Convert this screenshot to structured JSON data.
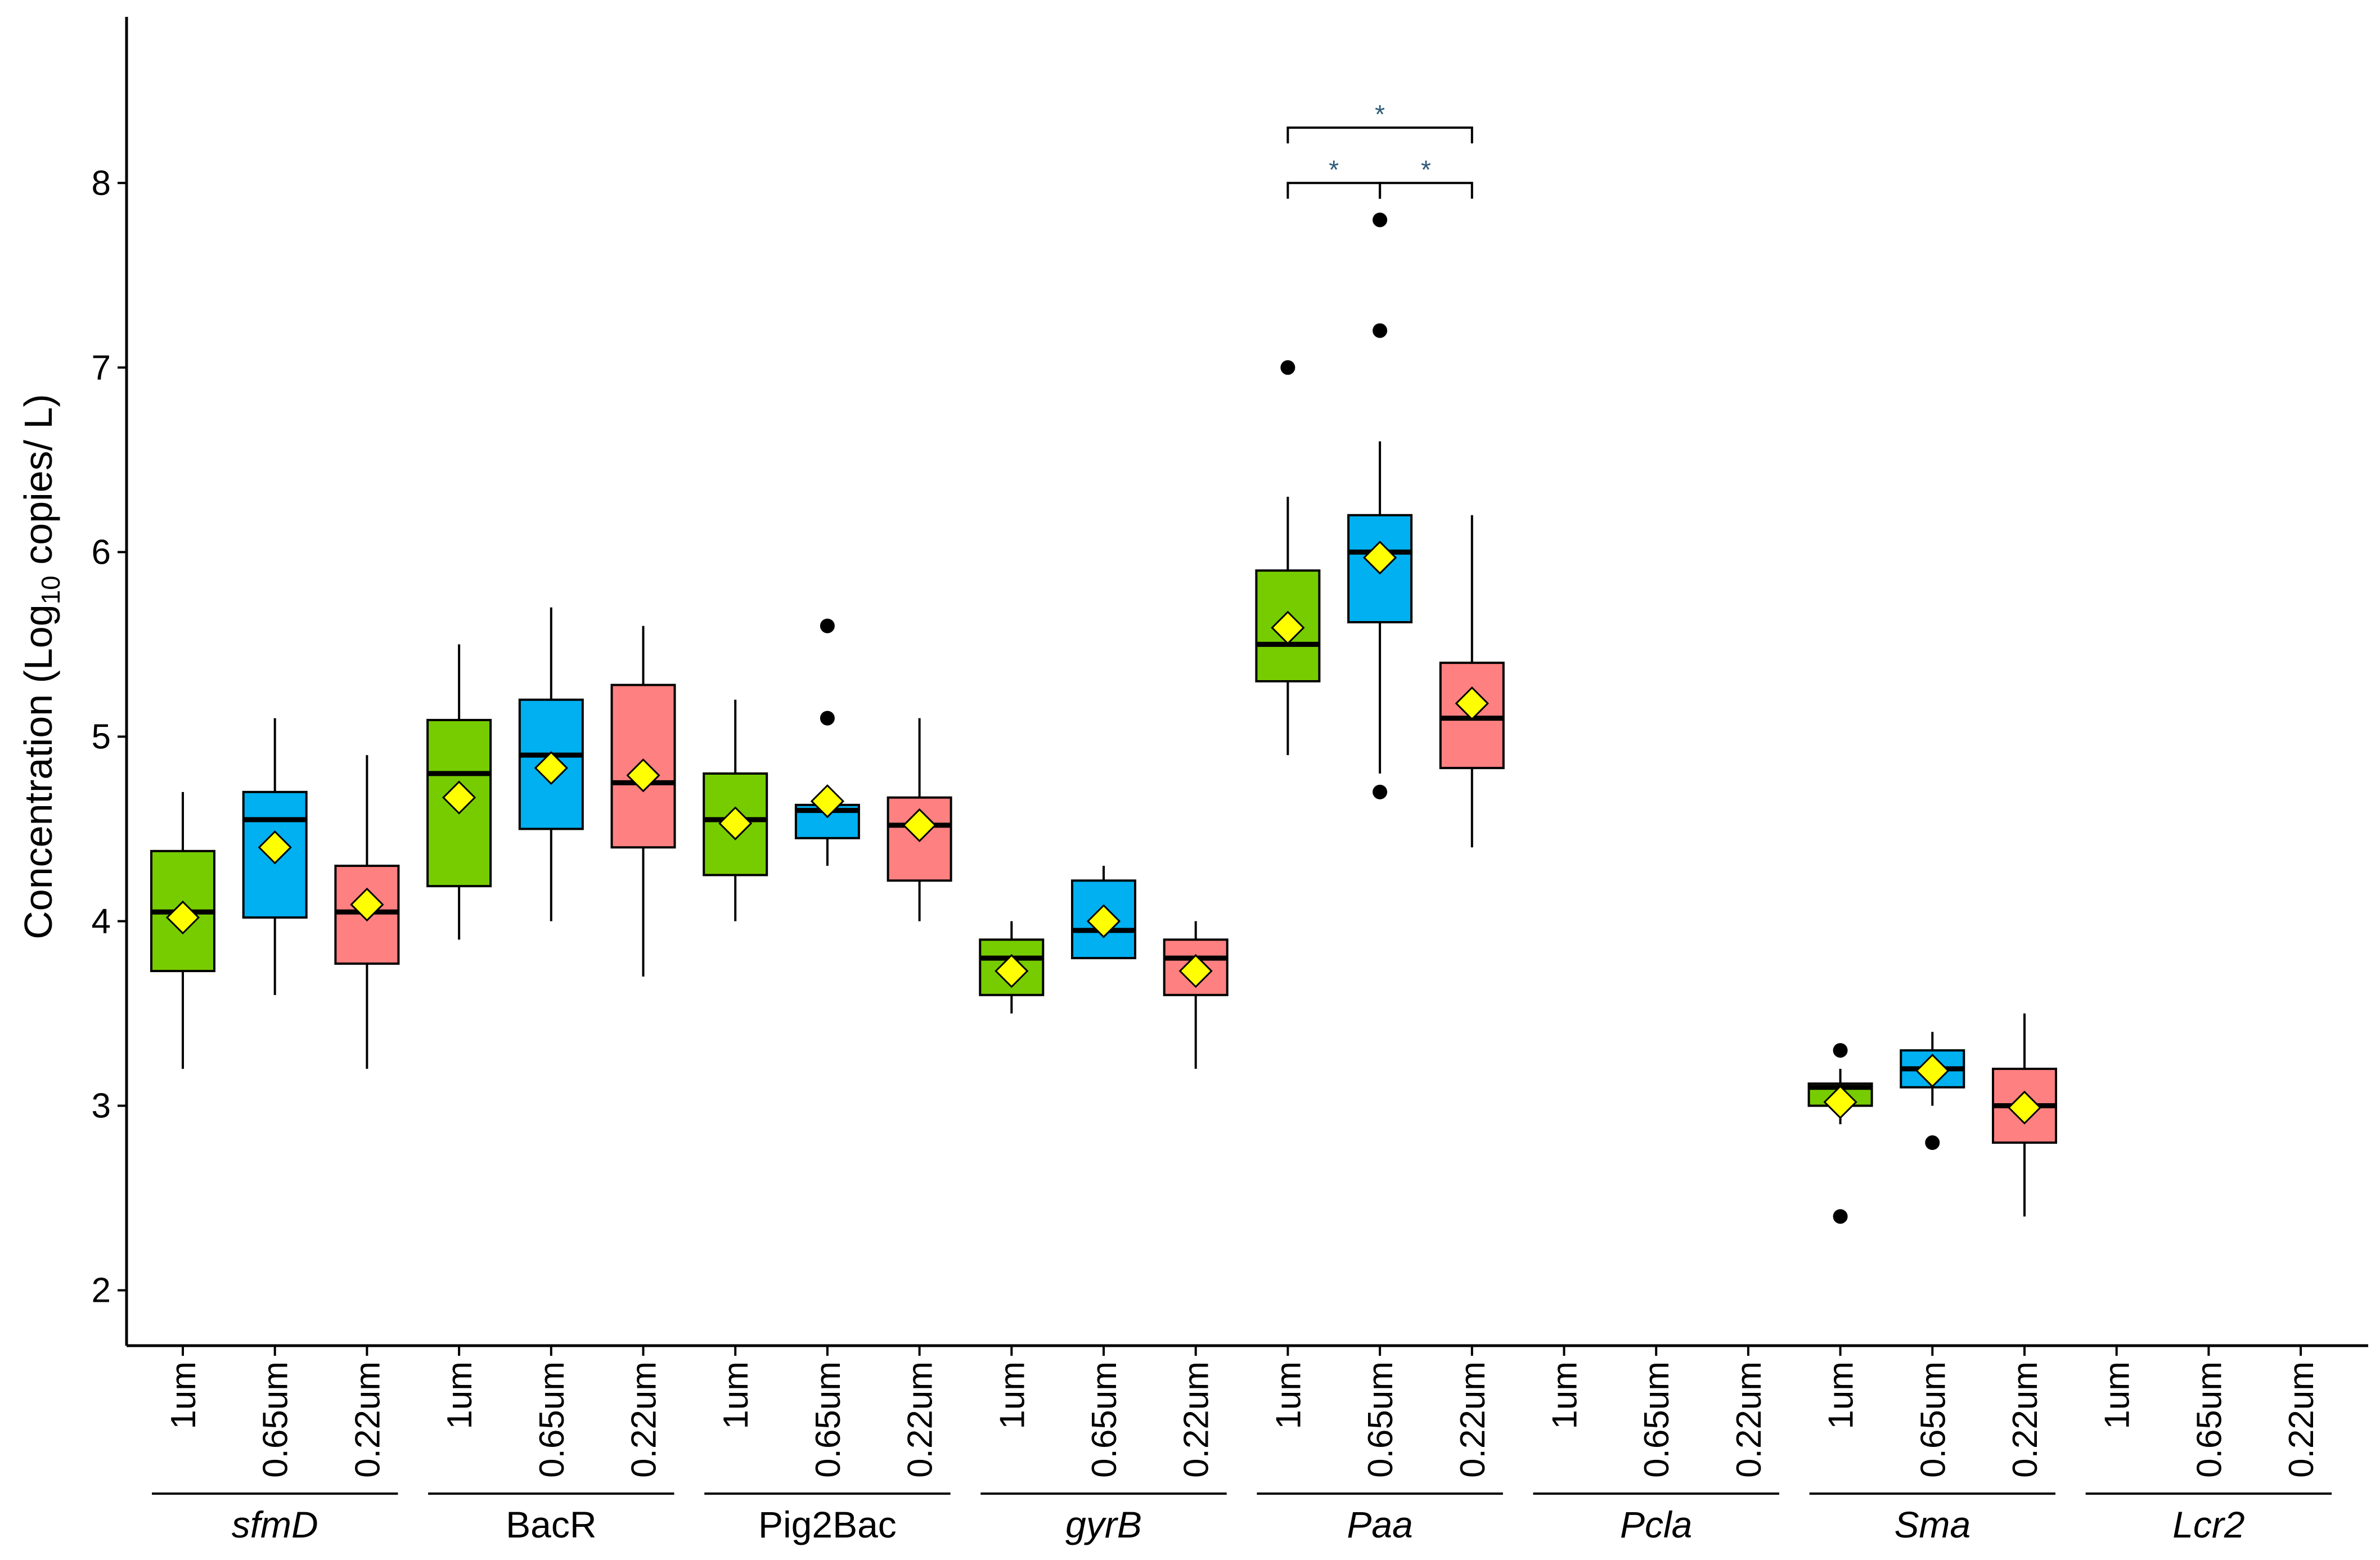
{
  "chart_data": {
    "type": "box",
    "ylabel": {
      "pre": "Concentration (Log",
      "sub": "10",
      "post": " copies/ L)"
    },
    "ylim": [
      1.7,
      8.9
    ],
    "yticks": [
      2,
      3,
      4,
      5,
      6,
      7,
      8
    ],
    "sizes": [
      "1um",
      "0.65um",
      "0.22um"
    ],
    "colors": {
      "1um": "#77cc00",
      "0.65um": "#00b0f0",
      "0.22um": "#ff8080"
    },
    "mean_marker_color": "#ffff00",
    "groups": [
      {
        "gene": "sfmD",
        "italic": true,
        "boxes": [
          {
            "size": "1um",
            "min": 3.2,
            "q1": 3.73,
            "median": 4.05,
            "q3": 4.38,
            "max": 4.7,
            "mean": 4.02,
            "outliers": []
          },
          {
            "size": "0.65um",
            "min": 3.6,
            "q1": 4.02,
            "median": 4.55,
            "q3": 4.7,
            "max": 5.1,
            "mean": 4.4,
            "outliers": []
          },
          {
            "size": "0.22um",
            "min": 3.2,
            "q1": 3.77,
            "median": 4.05,
            "q3": 4.3,
            "max": 4.9,
            "mean": 4.09,
            "outliers": []
          }
        ]
      },
      {
        "gene": "BacR",
        "italic": false,
        "boxes": [
          {
            "size": "1um",
            "min": 3.9,
            "q1": 4.19,
            "median": 4.8,
            "q3": 5.09,
            "max": 5.5,
            "mean": 4.67,
            "outliers": []
          },
          {
            "size": "0.65um",
            "min": 4.0,
            "q1": 4.5,
            "median": 4.9,
            "q3": 5.2,
            "max": 5.7,
            "mean": 4.83,
            "outliers": []
          },
          {
            "size": "0.22um",
            "min": 3.7,
            "q1": 4.4,
            "median": 4.75,
            "q3": 5.28,
            "max": 5.6,
            "mean": 4.79,
            "outliers": []
          }
        ]
      },
      {
        "gene": "Pig2Bac",
        "italic": false,
        "boxes": [
          {
            "size": "1um",
            "min": 4.0,
            "q1": 4.25,
            "median": 4.55,
            "q3": 4.8,
            "max": 5.2,
            "mean": 4.53,
            "outliers": []
          },
          {
            "size": "0.65um",
            "min": 4.3,
            "q1": 4.45,
            "median": 4.6,
            "q3": 4.63,
            "max": 4.63,
            "mean": 4.65,
            "outliers": [
              5.6,
              5.1
            ]
          },
          {
            "size": "0.22um",
            "min": 4.0,
            "q1": 4.22,
            "median": 4.52,
            "q3": 4.67,
            "max": 5.1,
            "mean": 4.52,
            "outliers": []
          }
        ]
      },
      {
        "gene": "gyrB",
        "italic": true,
        "boxes": [
          {
            "size": "1um",
            "min": 3.5,
            "q1": 3.6,
            "median": 3.8,
            "q3": 3.9,
            "max": 4.0,
            "mean": 3.73,
            "outliers": []
          },
          {
            "size": "0.65um",
            "min": 3.8,
            "q1": 3.8,
            "median": 3.95,
            "q3": 4.22,
            "max": 4.3,
            "mean": 4.0,
            "outliers": []
          },
          {
            "size": "0.22um",
            "min": 3.2,
            "q1": 3.6,
            "median": 3.8,
            "q3": 3.9,
            "max": 4.0,
            "mean": 3.73,
            "outliers": []
          }
        ]
      },
      {
        "gene": "Paa",
        "italic": true,
        "boxes": [
          {
            "size": "1um",
            "min": 4.9,
            "q1": 5.3,
            "median": 5.5,
            "q3": 5.9,
            "max": 6.3,
            "mean": 5.59,
            "outliers": [
              7.0
            ]
          },
          {
            "size": "0.65um",
            "min": 4.8,
            "q1": 5.62,
            "median": 6.0,
            "q3": 6.2,
            "max": 6.6,
            "mean": 5.97,
            "outliers": [
              7.8,
              7.2,
              4.7
            ]
          },
          {
            "size": "0.22um",
            "min": 4.4,
            "q1": 4.83,
            "median": 5.1,
            "q3": 5.4,
            "max": 6.2,
            "mean": 5.18,
            "outliers": []
          }
        ]
      },
      {
        "gene": "Pcla",
        "italic": true,
        "boxes": []
      },
      {
        "gene": "Sma",
        "italic": true,
        "boxes": [
          {
            "size": "1um",
            "min": 2.9,
            "q1": 3.0,
            "median": 3.1,
            "q3": 3.12,
            "max": 3.2,
            "mean": 3.02,
            "outliers": [
              3.3,
              2.4
            ]
          },
          {
            "size": "0.65um",
            "min": 3.0,
            "q1": 3.1,
            "median": 3.2,
            "q3": 3.3,
            "max": 3.4,
            "mean": 3.19,
            "outliers": [
              2.8
            ]
          },
          {
            "size": "0.22um",
            "min": 2.4,
            "q1": 2.8,
            "median": 3.0,
            "q3": 3.2,
            "max": 3.5,
            "mean": 2.99,
            "outliers": []
          }
        ]
      },
      {
        "gene": "Lcr2",
        "italic": true,
        "boxes": []
      }
    ],
    "significance": [
      {
        "group": "Paa",
        "from": "1um",
        "to": "0.22um",
        "y": 8.3,
        "label": "*"
      },
      {
        "group": "Paa",
        "from": "1um",
        "to": "0.65um",
        "y": 8.0,
        "label": "*"
      },
      {
        "group": "Paa",
        "from": "0.65um",
        "to": "0.22um",
        "y": 8.0,
        "label": "*"
      }
    ]
  }
}
